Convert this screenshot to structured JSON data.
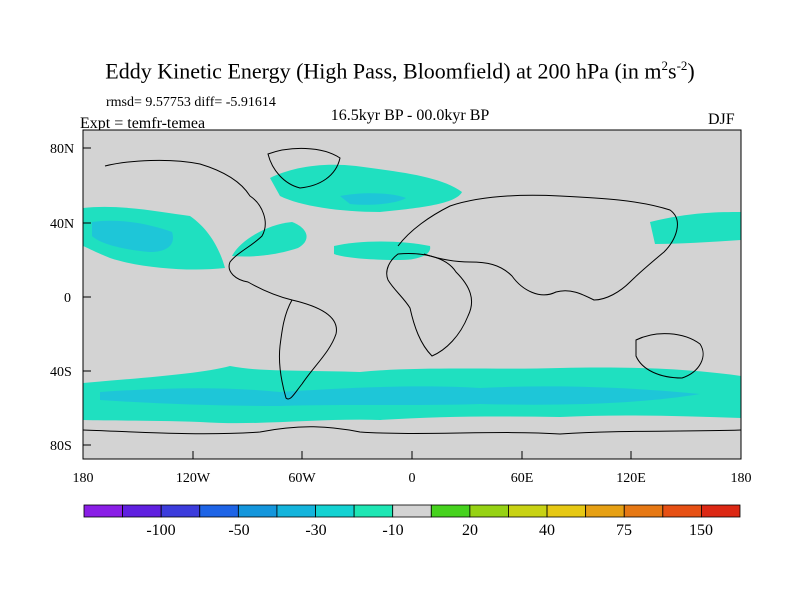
{
  "title": {
    "main": "Eddy Kinetic Energy (High Pass, Bloomfield) at 200 hPa (in m",
    "sup1": "2",
    "mid": "s",
    "sup2": "-2",
    "end": ")"
  },
  "stats": "rmsd= 9.57753 diff= -5.91614",
  "experiment": "Expt = temfr-temea",
  "period": "16.5kyr BP - 00.0kyr BP",
  "season": "DJF",
  "map": {
    "land_color": "#d3d3d3",
    "anomaly_color": "#1fe0c0",
    "anomaly_strong_color": "#1ec6d8",
    "lat_labels": [
      "80N",
      "40N",
      "0",
      "40S",
      "80S"
    ],
    "lon_labels": [
      "180",
      "120W",
      "60W",
      "0",
      "60E",
      "120E",
      "180"
    ]
  },
  "colorbar": {
    "colors": [
      "#8a1ee6",
      "#6020e0",
      "#3c3cdc",
      "#1e64e6",
      "#1496dc",
      "#14b4dc",
      "#14d2d2",
      "#1ee6b4",
      "#d3d3d3",
      "#46d21e",
      "#96d214",
      "#c8d214",
      "#e6c814",
      "#e6a014",
      "#e67814",
      "#e65014",
      "#dc2814"
    ],
    "labels": [
      "-100",
      "-50",
      "-30",
      "-10",
      "20",
      "40",
      "75",
      "150"
    ]
  }
}
